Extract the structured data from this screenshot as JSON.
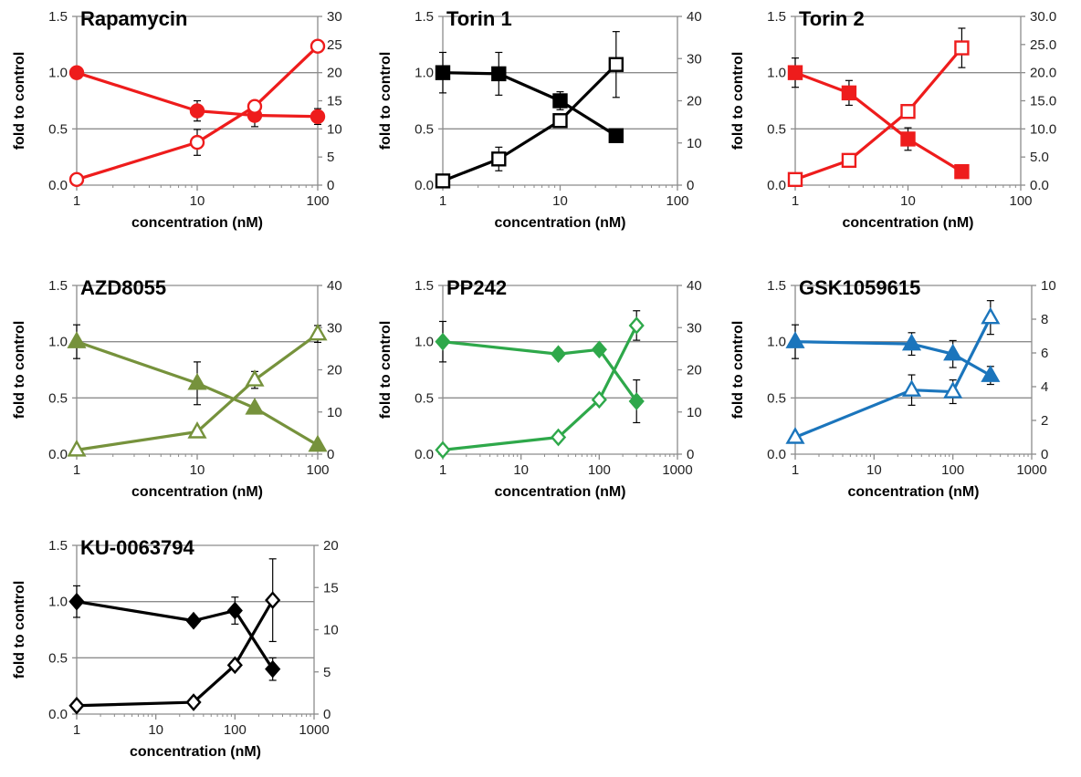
{
  "chart_data": [
    {
      "type": "line",
      "title": "Rapamycin",
      "xlabel": "concentration (nM)",
      "ylabel": "fold to control",
      "x_scale": "log",
      "xlim": [
        1,
        100
      ],
      "x_ticks": [
        "1",
        "10",
        "100"
      ],
      "ylim": [
        0,
        1.5
      ],
      "y_ticks": [
        "0.0",
        "0.5",
        "1.0",
        "1.5"
      ],
      "y2lim": [
        0,
        30
      ],
      "y2_ticks": [
        "0",
        "5",
        "10",
        "15",
        "20",
        "25",
        "30"
      ],
      "color": "#ee1c1c",
      "grid": "horizontal",
      "series": [
        {
          "axis": "left",
          "marker": "circle",
          "filled": true,
          "x": [
            1,
            10,
            30,
            100
          ],
          "y": [
            1.0,
            0.66,
            0.62,
            0.61
          ],
          "err": [
            0.0,
            0.09,
            0.1,
            0.07
          ]
        },
        {
          "axis": "right",
          "marker": "circle",
          "filled": false,
          "x": [
            1,
            10,
            30,
            100
          ],
          "y": [
            1.0,
            7.6,
            14.0,
            24.7
          ],
          "err": [
            0.0,
            2.3,
            0.0,
            0.0
          ]
        }
      ]
    },
    {
      "type": "line",
      "title": "Torin 1",
      "xlabel": "concentration (nM)",
      "ylabel": "fold to control",
      "x_scale": "log",
      "xlim": [
        1,
        100
      ],
      "x_ticks": [
        "1",
        "10",
        "100"
      ],
      "ylim": [
        0,
        1.5
      ],
      "y_ticks": [
        "0.0",
        "0.5",
        "1.0",
        "1.5"
      ],
      "y2lim": [
        0,
        40
      ],
      "y2_ticks": [
        "0",
        "10",
        "20",
        "30",
        "40"
      ],
      "color": "#000000",
      "grid": "horizontal",
      "series": [
        {
          "axis": "left",
          "marker": "square",
          "filled": true,
          "x": [
            1,
            3,
            10,
            30
          ],
          "y": [
            1.0,
            0.99,
            0.75,
            0.44
          ],
          "err": [
            0.18,
            0.19,
            0.08,
            0.0
          ]
        },
        {
          "axis": "right",
          "marker": "square",
          "filled": false,
          "x": [
            1,
            3,
            10,
            30
          ],
          "y": [
            1.0,
            6.2,
            15.3,
            28.6
          ],
          "err": [
            0.0,
            2.8,
            0.0,
            7.8
          ]
        }
      ]
    },
    {
      "type": "line",
      "title": "Torin 2",
      "xlabel": "concentration (nM)",
      "ylabel": "fold to control",
      "x_scale": "log",
      "xlim": [
        1,
        100
      ],
      "x_ticks": [
        "1",
        "10",
        "100"
      ],
      "ylim": [
        0,
        1.5
      ],
      "y_ticks": [
        "0.0",
        "0.5",
        "1.0",
        "1.5"
      ],
      "y2lim": [
        0,
        30
      ],
      "y2_ticks": [
        "0.0",
        "5.0",
        "10.0",
        "15.0",
        "20.0",
        "25.0",
        "30.0"
      ],
      "color": "#ee1c1c",
      "grid": "horizontal",
      "series": [
        {
          "axis": "left",
          "marker": "square",
          "filled": true,
          "x": [
            1,
            3,
            10,
            30
          ],
          "y": [
            1.0,
            0.82,
            0.41,
            0.12
          ],
          "err": [
            0.13,
            0.11,
            0.1,
            0.0
          ]
        },
        {
          "axis": "right",
          "marker": "square",
          "filled": false,
          "x": [
            1,
            3,
            10,
            30
          ],
          "y": [
            1.0,
            4.4,
            13.1,
            24.4
          ],
          "err": [
            0.0,
            0.0,
            0.0,
            3.5
          ]
        }
      ]
    },
    {
      "type": "line",
      "title": "AZD8055",
      "xlabel": "concentration (nM)",
      "ylabel": "fold to control",
      "x_scale": "log",
      "xlim": [
        1,
        100
      ],
      "x_ticks": [
        "1",
        "10",
        "100"
      ],
      "ylim": [
        0,
        1.5
      ],
      "y_ticks": [
        "0.0",
        "0.5",
        "1.0",
        "1.5"
      ],
      "y2lim": [
        0,
        40
      ],
      "y2_ticks": [
        "0",
        "10",
        "20",
        "30",
        "40"
      ],
      "color": "#76923c",
      "grid": "horizontal",
      "series": [
        {
          "axis": "left",
          "marker": "triangle",
          "filled": true,
          "x": [
            1,
            10,
            30,
            100
          ],
          "y": [
            1.0,
            0.63,
            0.41,
            0.08
          ],
          "err": [
            0.15,
            0.19,
            0.0,
            0.0
          ]
        },
        {
          "axis": "right",
          "marker": "triangle",
          "filled": false,
          "x": [
            1,
            10,
            30,
            100
          ],
          "y": [
            1.0,
            5.3,
            17.6,
            28.5
          ],
          "err": [
            0.0,
            0.0,
            2.0,
            2.0
          ]
        }
      ]
    },
    {
      "type": "line",
      "title": "PP242",
      "xlabel": "concentration (nM)",
      "ylabel": "fold to control",
      "x_scale": "log",
      "xlim": [
        1,
        1000
      ],
      "x_ticks": [
        "1",
        "10",
        "100",
        "1000"
      ],
      "ylim": [
        0,
        1.5
      ],
      "y_ticks": [
        "0.0",
        "0.5",
        "1.0",
        "1.5"
      ],
      "y2lim": [
        0,
        40
      ],
      "y2_ticks": [
        "0",
        "10",
        "20",
        "30",
        "40"
      ],
      "color": "#2ea84a",
      "grid": "horizontal",
      "series": [
        {
          "axis": "left",
          "marker": "diamond",
          "filled": true,
          "x": [
            1,
            30,
            100,
            300
          ],
          "y": [
            1.0,
            0.89,
            0.93,
            0.47
          ],
          "err": [
            0.18,
            0.04,
            0.0,
            0.19
          ]
        },
        {
          "axis": "right",
          "marker": "diamond",
          "filled": false,
          "x": [
            1,
            30,
            100,
            300
          ],
          "y": [
            1.0,
            4.0,
            12.9,
            30.5
          ],
          "err": [
            0.0,
            0.0,
            0.0,
            3.5
          ]
        }
      ]
    },
    {
      "type": "line",
      "title": "GSK1059615",
      "xlabel": "concentration (nM)",
      "ylabel": "fold to control",
      "x_scale": "log",
      "xlim": [
        1,
        1000
      ],
      "x_ticks": [
        "1",
        "10",
        "100",
        "1000"
      ],
      "ylim": [
        0,
        1.5
      ],
      "y_ticks": [
        "0.0",
        "0.5",
        "1.0",
        "1.5"
      ],
      "y2lim": [
        0,
        10
      ],
      "y2_ticks": [
        "0",
        "2",
        "4",
        "6",
        "8",
        "10"
      ],
      "color": "#1b75bc",
      "grid": "horizontal",
      "series": [
        {
          "axis": "left",
          "marker": "triangle",
          "filled": true,
          "x": [
            1,
            30,
            100,
            300
          ],
          "y": [
            1.0,
            0.98,
            0.89,
            0.7
          ],
          "err": [
            0.15,
            0.1,
            0.12,
            0.08
          ]
        },
        {
          "axis": "right",
          "marker": "triangle",
          "filled": false,
          "x": [
            1,
            30,
            100,
            300
          ],
          "y": [
            1.0,
            3.8,
            3.7,
            8.1
          ],
          "err": [
            0.0,
            0.9,
            0.7,
            1.0
          ]
        }
      ]
    },
    {
      "type": "line",
      "title": "KU-0063794",
      "xlabel": "concentration (nM)",
      "ylabel": "fold to control",
      "x_scale": "log",
      "xlim": [
        1,
        1000
      ],
      "x_ticks": [
        "1",
        "10",
        "100",
        "1000"
      ],
      "ylim": [
        0,
        1.5
      ],
      "y_ticks": [
        "0.0",
        "0.5",
        "1.0",
        "1.5"
      ],
      "y2lim": [
        0,
        20
      ],
      "y2_ticks": [
        "0",
        "5",
        "10",
        "15",
        "20"
      ],
      "color": "#000000",
      "grid": "horizontal",
      "series": [
        {
          "axis": "left",
          "marker": "diamond",
          "filled": true,
          "x": [
            1,
            30,
            100,
            300
          ],
          "y": [
            1.0,
            0.83,
            0.92,
            0.4
          ],
          "err": [
            0.14,
            0.04,
            0.12,
            0.1
          ]
        },
        {
          "axis": "right",
          "marker": "diamond",
          "filled": false,
          "x": [
            1,
            30,
            100,
            300
          ],
          "y": [
            1.0,
            1.4,
            5.8,
            13.5
          ],
          "err": [
            0.0,
            0.0,
            0.0,
            4.9
          ]
        }
      ]
    }
  ]
}
